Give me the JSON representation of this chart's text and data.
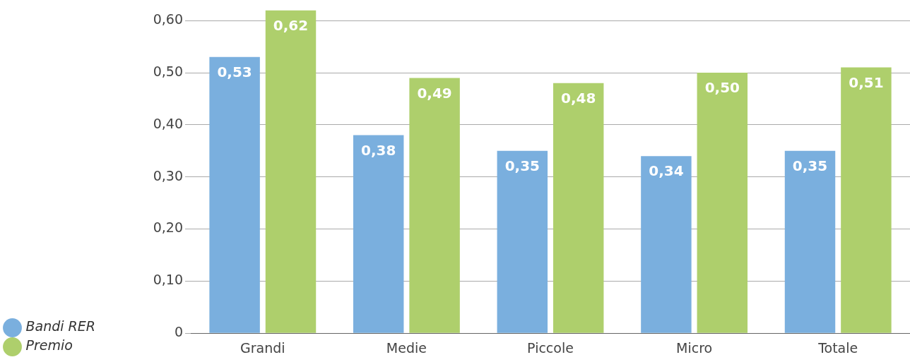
{
  "chart_data": {
    "type": "bar",
    "categories": [
      "Grandi",
      "Medie",
      "Piccole",
      "Micro",
      "Totale"
    ],
    "series": [
      {
        "name": "Bandi RER",
        "color": "#7aafde",
        "values": [
          0.53,
          0.38,
          0.35,
          0.34,
          0.35
        ],
        "value_labels": [
          "0,53",
          "0,38",
          "0,35",
          "0,34",
          "0,35"
        ]
      },
      {
        "name": "Premio",
        "color": "#aecf6c",
        "values": [
          0.62,
          0.49,
          0.48,
          0.5,
          0.51
        ],
        "value_labels": [
          "0,62",
          "0,49",
          "0,48",
          "0,50",
          "0,51"
        ]
      }
    ],
    "ylim": [
      0,
      0.62
    ],
    "yticks": [
      0,
      {
        "value": 0.1,
        "label": "0,10"
      },
      {
        "value": 0.2,
        "label": "0,20"
      },
      {
        "value": 0.3,
        "label": "0,30"
      },
      {
        "value": 0.4,
        "label": "0,40"
      },
      {
        "value": 0.5,
        "label": "0,50"
      },
      {
        "value": 0.6,
        "label": "0,60"
      }
    ],
    "grid": "y",
    "legend": "bottom left"
  }
}
